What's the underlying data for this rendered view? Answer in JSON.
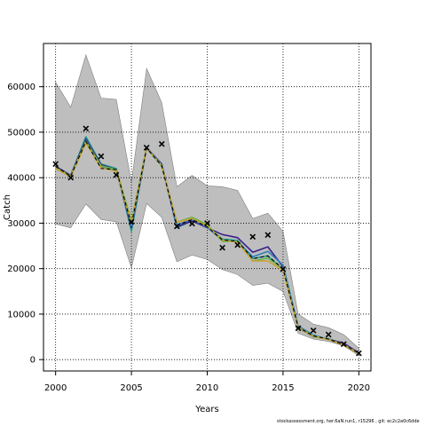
{
  "chart_data": {
    "type": "line",
    "xlabel": "Years",
    "ylabel": "Catch",
    "xlim": [
      1999.2,
      2020.8
    ],
    "ylim": [
      -2500,
      69500
    ],
    "xticks": [
      2000,
      2005,
      2010,
      2015,
      2020
    ],
    "yticks": [
      0,
      10000,
      20000,
      30000,
      40000,
      50000,
      60000
    ],
    "grid": true,
    "x": [
      2000,
      2001,
      2002,
      2003,
      2004,
      2005,
      2006,
      2007,
      2008,
      2009,
      2010,
      2011,
      2012,
      2013,
      2014,
      2015,
      2016,
      2017,
      2018,
      2019,
      2020
    ],
    "band": {
      "upper": [
        61000,
        55500,
        67000,
        57500,
        57200,
        39000,
        64000,
        56500,
        38000,
        40500,
        38200,
        38000,
        37200,
        31000,
        32200,
        28200,
        10000,
        7800,
        7000,
        5500,
        2500
      ],
      "lower": [
        29800,
        29000,
        34200,
        30800,
        30300,
        20200,
        34300,
        31300,
        21500,
        23000,
        22000,
        19800,
        18700,
        16300,
        16800,
        15000,
        5800,
        4500,
        4000,
        3000,
        900
      ]
    },
    "series": [
      {
        "values": [
          42500,
          40500,
          49000,
          43000,
          42000,
          28200,
          46600,
          43000,
          29000,
          30500,
          29300,
          26500,
          26200,
          22200,
          22800,
          19800,
          7000,
          5000,
          4600,
          3300,
          1400
        ],
        "color": "#1f9e89"
      },
      {
        "values": [
          42500,
          40500,
          48500,
          42800,
          41800,
          29000,
          46600,
          43000,
          29200,
          30500,
          29000,
          27500,
          26800,
          23600,
          24800,
          20400,
          7000,
          5300,
          4500,
          3600,
          1500
        ],
        "color": "#3b1f8a"
      },
      {
        "values": [
          42000,
          40200,
          48200,
          42400,
          41500,
          29400,
          46600,
          42800,
          29600,
          30800,
          29100,
          26200,
          26000,
          22600,
          23800,
          20800,
          7400,
          5400,
          4400,
          3200,
          1400
        ],
        "color": "#2c7fb8"
      },
      {
        "values": [
          42200,
          40400,
          48000,
          42600,
          41800,
          30500,
          46500,
          42500,
          30200,
          31300,
          29700,
          26000,
          26000,
          21700,
          22300,
          20000,
          7100,
          5200,
          4500,
          3300,
          1400
        ],
        "color": "#6ab04c"
      },
      {
        "values": [
          42000,
          40200,
          47600,
          42200,
          41400,
          30000,
          46500,
          42600,
          30200,
          31000,
          29400,
          26300,
          25800,
          21700,
          21700,
          19600,
          7000,
          5100,
          4400,
          3200,
          1300
        ],
        "color": "#c8a232"
      }
    ],
    "median": [
      42500,
      40300,
      48000,
      42000,
      41800,
      29600,
      46500,
      42600,
      29500,
      30800,
      29200,
      26300,
      26000,
      22200,
      22800,
      20000,
      7100,
      5200,
      4500,
      3300,
      1400
    ],
    "observed": [
      {
        "x": 2000,
        "y": 43000
      },
      {
        "x": 2001,
        "y": 40000
      },
      {
        "x": 2002,
        "y": 50800
      },
      {
        "x": 2003,
        "y": 44700
      },
      {
        "x": 2004,
        "y": 40600
      },
      {
        "x": 2005,
        "y": 30300
      },
      {
        "x": 2006,
        "y": 46600
      },
      {
        "x": 2007,
        "y": 47400
      },
      {
        "x": 2008,
        "y": 29300
      },
      {
        "x": 2009,
        "y": 29900
      },
      {
        "x": 2010,
        "y": 30000
      },
      {
        "x": 2011,
        "y": 24600
      },
      {
        "x": 2012,
        "y": 25200
      },
      {
        "x": 2013,
        "y": 27000
      },
      {
        "x": 2014,
        "y": 27400
      },
      {
        "x": 2015,
        "y": 19900
      },
      {
        "x": 2016,
        "y": 6900
      },
      {
        "x": 2017,
        "y": 6400
      },
      {
        "x": 2018,
        "y": 5500
      },
      {
        "x": 2019,
        "y": 3400
      },
      {
        "x": 2020,
        "y": 1400
      }
    ],
    "colors": {
      "band_fill": "#bebebe",
      "band_stroke": "#7f7f7f",
      "median_line": "#000000",
      "grid": "#000000",
      "marker": "#000000"
    }
  },
  "footer": {
    "caption": "stockassessment.org, her.6aN.run1, r15296 , git: ec2c2a0c6dde"
  }
}
